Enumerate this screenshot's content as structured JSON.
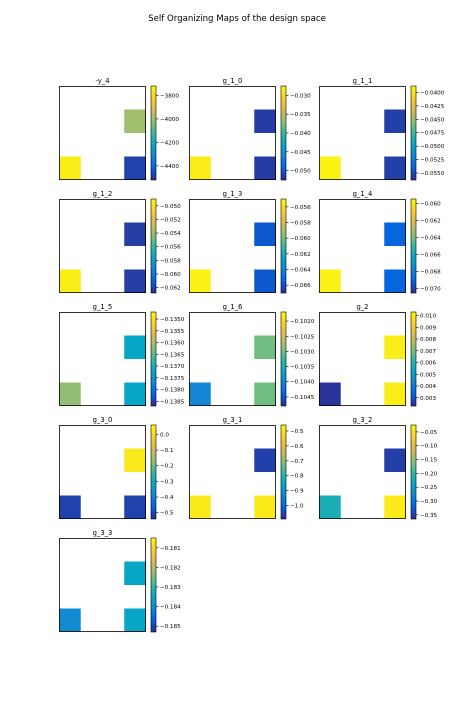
{
  "figure": {
    "title": "Self Organizing Maps of the design space"
  },
  "colormap": [
    "#352a87",
    "#0363e1",
    "#1485d4",
    "#06a7c6",
    "#38b99e",
    "#92bf73",
    "#d9ba56",
    "#fcce2e",
    "#f9fb0e"
  ],
  "chart_data": [
    {
      "type": "heatmap",
      "title": "-y_4",
      "grid_size": [
        4,
        4
      ],
      "vmin": -4520,
      "vmax": -3720,
      "ticks": [
        -3800,
        -4000,
        -4200,
        -4400
      ],
      "tick_labels": [
        "−3800",
        "−4000",
        "−4200",
        "−4400"
      ],
      "cells": [
        {
          "row": 1,
          "col": 3,
          "value": -4000
        },
        {
          "row": 3,
          "col": 0,
          "value": -3750
        },
        {
          "row": 3,
          "col": 3,
          "value": -4480
        }
      ]
    },
    {
      "type": "heatmap",
      "title": "g_1_0",
      "grid_size": [
        4,
        4
      ],
      "vmin": -0.0525,
      "vmax": -0.0275,
      "ticks": [
        -0.03,
        -0.035,
        -0.04,
        -0.045,
        -0.05
      ],
      "tick_labels": [
        "−0.030",
        "−0.035",
        "−0.040",
        "−0.045",
        "−0.050"
      ],
      "cells": [
        {
          "row": 1,
          "col": 3,
          "value": -0.0515
        },
        {
          "row": 3,
          "col": 0,
          "value": -0.0285
        },
        {
          "row": 3,
          "col": 3,
          "value": -0.0515
        }
      ]
    },
    {
      "type": "heatmap",
      "title": "g_1_1",
      "grid_size": [
        4,
        4
      ],
      "vmin": -0.0563,
      "vmax": -0.0388,
      "ticks": [
        -0.04,
        -0.0425,
        -0.045,
        -0.0475,
        -0.05,
        -0.0525,
        -0.055
      ],
      "tick_labels": [
        "−0.0400",
        "−0.0425",
        "−0.0450",
        "−0.0475",
        "−0.0500",
        "−0.0525",
        "−0.0550"
      ],
      "cells": [
        {
          "row": 1,
          "col": 3,
          "value": -0.0555
        },
        {
          "row": 3,
          "col": 0,
          "value": -0.0392
        },
        {
          "row": 3,
          "col": 3,
          "value": -0.0555
        }
      ]
    },
    {
      "type": "heatmap",
      "title": "g_1_2",
      "grid_size": [
        4,
        4
      ],
      "vmin": -0.0628,
      "vmax": -0.049,
      "ticks": [
        -0.05,
        -0.052,
        -0.054,
        -0.056,
        -0.058,
        -0.06,
        -0.062
      ],
      "tick_labels": [
        "−0.050",
        "−0.052",
        "−0.054",
        "−0.056",
        "−0.058",
        "−0.060",
        "−0.062"
      ],
      "cells": [
        {
          "row": 1,
          "col": 3,
          "value": -0.0622
        },
        {
          "row": 3,
          "col": 0,
          "value": -0.0495
        },
        {
          "row": 3,
          "col": 3,
          "value": -0.0622
        }
      ]
    },
    {
      "type": "heatmap",
      "title": "g_1_3",
      "grid_size": [
        4,
        4
      ],
      "vmin": -0.067,
      "vmax": -0.055,
      "ticks": [
        -0.056,
        -0.058,
        -0.06,
        -0.062,
        -0.064,
        -0.066
      ],
      "tick_labels": [
        "−0.056",
        "−0.058",
        "−0.060",
        "−0.062",
        "−0.064",
        "−0.066"
      ],
      "cells": [
        {
          "row": 1,
          "col": 3,
          "value": -0.0658
        },
        {
          "row": 3,
          "col": 0,
          "value": -0.0553
        },
        {
          "row": 3,
          "col": 3,
          "value": -0.0658
        }
      ]
    },
    {
      "type": "heatmap",
      "title": "g_1_4",
      "grid_size": [
        4,
        4
      ],
      "vmin": -0.0705,
      "vmax": -0.0595,
      "ticks": [
        -0.06,
        -0.062,
        -0.064,
        -0.066,
        -0.068,
        -0.07
      ],
      "tick_labels": [
        "−0.060",
        "−0.062",
        "−0.064",
        "−0.066",
        "−0.068",
        "−0.070"
      ],
      "cells": [
        {
          "row": 1,
          "col": 3,
          "value": -0.069
        },
        {
          "row": 3,
          "col": 0,
          "value": -0.0598
        },
        {
          "row": 3,
          "col": 3,
          "value": -0.069
        }
      ]
    },
    {
      "type": "heatmap",
      "title": "g_1_5",
      "grid_size": [
        4,
        4
      ],
      "vmin": -0.1387,
      "vmax": -0.1347,
      "ticks": [
        -0.135,
        -0.1355,
        -0.136,
        -0.1365,
        -0.137,
        -0.1375,
        -0.138,
        -0.1385
      ],
      "tick_labels": [
        "−0.1350",
        "−0.1355",
        "−0.1360",
        "−0.1365",
        "−0.1370",
        "−0.1375",
        "−0.1380",
        "−0.1385"
      ],
      "cells": [
        {
          "row": 1,
          "col": 3,
          "value": -0.1372
        },
        {
          "row": 3,
          "col": 0,
          "value": -0.1362
        },
        {
          "row": 3,
          "col": 3,
          "value": -0.1372
        }
      ]
    },
    {
      "type": "heatmap",
      "title": "g_1_6",
      "grid_size": [
        4,
        4
      ],
      "vmin": -0.1048,
      "vmax": -0.1017,
      "ticks": [
        -0.102,
        -0.1025,
        -0.103,
        -0.1035,
        -0.104,
        -0.1045
      ],
      "tick_labels": [
        "−0.1020",
        "−0.1025",
        "−0.1030",
        "−0.1035",
        "−0.1040",
        "−0.1045"
      ],
      "cells": [
        {
          "row": 1,
          "col": 3,
          "value": -0.103
        },
        {
          "row": 3,
          "col": 0,
          "value": -0.104
        },
        {
          "row": 3,
          "col": 3,
          "value": -0.103
        }
      ]
    },
    {
      "type": "heatmap",
      "title": "g_2",
      "grid_size": [
        4,
        4
      ],
      "vmin": 0.0023,
      "vmax": 0.0103,
      "ticks": [
        0.01,
        0.009,
        0.008,
        0.007,
        0.006,
        0.005,
        0.004,
        0.003
      ],
      "tick_labels": [
        "0.010",
        "0.009",
        "0.008",
        "0.007",
        "0.006",
        "0.005",
        "0.004",
        "0.003"
      ],
      "cells": [
        {
          "row": 1,
          "col": 3,
          "value": 0.01
        },
        {
          "row": 3,
          "col": 0,
          "value": 0.0025
        },
        {
          "row": 3,
          "col": 3,
          "value": 0.01
        }
      ]
    },
    {
      "type": "heatmap",
      "title": "g_3_0",
      "grid_size": [
        4,
        4
      ],
      "vmin": -0.54,
      "vmax": 0.06,
      "ticks": [
        0.0,
        -0.1,
        -0.2,
        -0.3,
        -0.4,
        -0.5
      ],
      "tick_labels": [
        "0.0",
        "−0.1",
        "−0.2",
        "−0.3",
        "−0.4",
        "−0.5"
      ],
      "cells": [
        {
          "row": 1,
          "col": 3,
          "value": 0.03
        },
        {
          "row": 3,
          "col": 0,
          "value": -0.51
        },
        {
          "row": 3,
          "col": 3,
          "value": -0.51
        }
      ]
    },
    {
      "type": "heatmap",
      "title": "g_3_1",
      "grid_size": [
        4,
        4
      ],
      "vmin": -1.09,
      "vmax": -0.46,
      "ticks": [
        -0.5,
        -0.6,
        -0.7,
        -0.8,
        -0.9,
        -1.0
      ],
      "tick_labels": [
        "−0.5",
        "−0.6",
        "−0.7",
        "−0.8",
        "−0.9",
        "−1.0"
      ],
      "cells": [
        {
          "row": 1,
          "col": 3,
          "value": -1.06
        },
        {
          "row": 3,
          "col": 0,
          "value": -0.49
        },
        {
          "row": 3,
          "col": 3,
          "value": -0.49
        }
      ]
    },
    {
      "type": "heatmap",
      "title": "g_3_2",
      "grid_size": [
        4,
        4
      ],
      "vmin": -0.365,
      "vmax": -0.025,
      "ticks": [
        -0.05,
        -0.1,
        -0.15,
        -0.2,
        -0.25,
        -0.3,
        -0.35
      ],
      "tick_labels": [
        "−0.05",
        "−0.10",
        "−0.15",
        "−0.20",
        "−0.25",
        "−0.30",
        "−0.35"
      ],
      "cells": [
        {
          "row": 1,
          "col": 3,
          "value": -0.35
        },
        {
          "row": 3,
          "col": 0,
          "value": -0.22
        },
        {
          "row": 3,
          "col": 3,
          "value": -0.04
        }
      ]
    },
    {
      "type": "heatmap",
      "title": "g_3_3",
      "grid_size": [
        4,
        4
      ],
      "vmin": -0.1853,
      "vmax": -0.1805,
      "ticks": [
        -0.181,
        -0.182,
        -0.183,
        -0.184,
        -0.185
      ],
      "tick_labels": [
        "−0.181",
        "−0.182",
        "−0.183",
        "−0.184",
        "−0.185"
      ],
      "cells": [
        {
          "row": 1,
          "col": 3,
          "value": -0.1835
        },
        {
          "row": 3,
          "col": 0,
          "value": -0.184
        },
        {
          "row": 3,
          "col": 3,
          "value": -0.1835
        }
      ]
    }
  ]
}
